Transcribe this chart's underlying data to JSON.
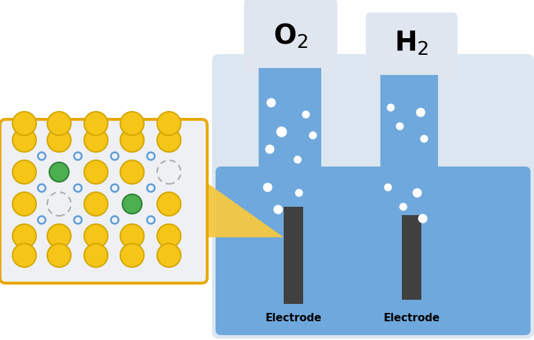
{
  "bg_color": "#ffffff",
  "beaker_color": "#6fa8dc",
  "beaker_light_color": "#dce6f0",
  "electrode_color": "#404040",
  "tube_color": "#6fa8dc",
  "bubble_color": "#ffffff",
  "orange_circle_color": "#f5c518",
  "orange_circle_edge": "#d4a800",
  "green_circle_color": "#4caf50",
  "green_circle_edge": "#2e7d32",
  "blue_small_color": "#5b9bd5",
  "dashed_circle_color": "#aaaaaa",
  "zoom_box_edge": "#e8a800",
  "zoom_bg": "#eef0f4",
  "arrow_color": "#f5c842",
  "o2_label": "O$_2$",
  "h2_label": "H$_2$",
  "electrode_label": "Electrode",
  "cap_bg": "#e0e6ef"
}
